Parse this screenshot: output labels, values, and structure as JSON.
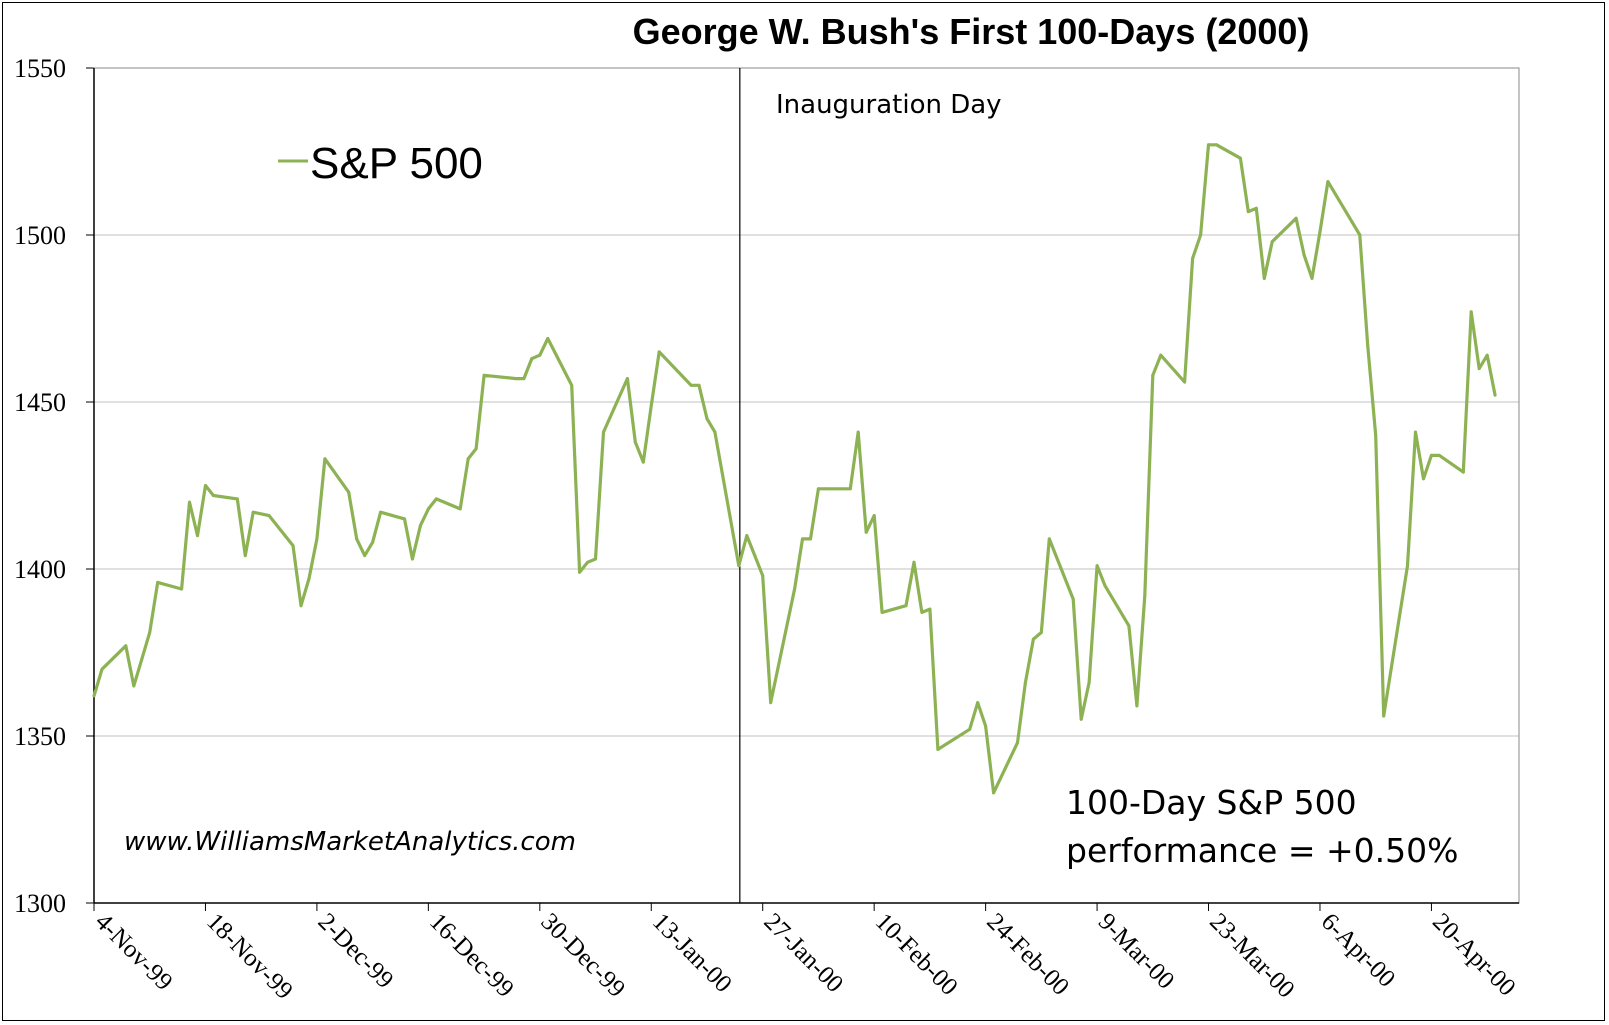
{
  "chart_data": {
    "type": "line",
    "title": "George W. Bush's First 100-Days (2000)",
    "xlabel": "",
    "ylabel": "",
    "ylim": [
      1300,
      1550
    ],
    "yticks": [
      "1300",
      "1350",
      "1400",
      "1450",
      "1500",
      "1550"
    ],
    "xlim": [
      "1999-11-04",
      "2000-05-01"
    ],
    "xticks": [
      {
        "date": "1999-11-04",
        "label": "4-Nov-99"
      },
      {
        "date": "1999-11-18",
        "label": "18-Nov-99"
      },
      {
        "date": "1999-12-02",
        "label": "2-Dec-99"
      },
      {
        "date": "1999-12-16",
        "label": "16-Dec-99"
      },
      {
        "date": "1999-12-30",
        "label": "30-Dec-99"
      },
      {
        "date": "2000-01-13",
        "label": "13-Jan-00"
      },
      {
        "date": "2000-01-27",
        "label": "27-Jan-00"
      },
      {
        "date": "2000-02-10",
        "label": "10-Feb-00"
      },
      {
        "date": "2000-02-24",
        "label": "24-Feb-00"
      },
      {
        "date": "2000-03-09",
        "label": "9-Mar-00"
      },
      {
        "date": "2000-03-23",
        "label": "23-Mar-00"
      },
      {
        "date": "2000-04-06",
        "label": "6-Apr-00"
      },
      {
        "date": "2000-04-20",
        "label": "20-Apr-00"
      }
    ],
    "grid": "horizontal",
    "legend_position": "top-left",
    "series": [
      {
        "name": "S&P 500",
        "color": "#8db254",
        "points": [
          [
            "1999-11-04",
            1362
          ],
          [
            "1999-11-05",
            1370
          ],
          [
            "1999-11-08",
            1377
          ],
          [
            "1999-11-09",
            1365
          ],
          [
            "1999-11-10",
            1373
          ],
          [
            "1999-11-11",
            1381
          ],
          [
            "1999-11-12",
            1396
          ],
          [
            "1999-11-15",
            1394
          ],
          [
            "1999-11-16",
            1420
          ],
          [
            "1999-11-17",
            1410
          ],
          [
            "1999-11-18",
            1425
          ],
          [
            "1999-11-19",
            1422
          ],
          [
            "1999-11-22",
            1421
          ],
          [
            "1999-11-23",
            1404
          ],
          [
            "1999-11-24",
            1417
          ],
          [
            "1999-11-26",
            1416
          ],
          [
            "1999-11-29",
            1407
          ],
          [
            "1999-11-30",
            1389
          ],
          [
            "1999-12-01",
            1397
          ],
          [
            "1999-12-02",
            1409
          ],
          [
            "1999-12-03",
            1433
          ],
          [
            "1999-12-06",
            1423
          ],
          [
            "1999-12-07",
            1409
          ],
          [
            "1999-12-08",
            1404
          ],
          [
            "1999-12-09",
            1408
          ],
          [
            "1999-12-10",
            1417
          ],
          [
            "1999-12-13",
            1415
          ],
          [
            "1999-12-14",
            1403
          ],
          [
            "1999-12-15",
            1413
          ],
          [
            "1999-12-16",
            1418
          ],
          [
            "1999-12-17",
            1421
          ],
          [
            "1999-12-20",
            1418
          ],
          [
            "1999-12-21",
            1433
          ],
          [
            "1999-12-22",
            1436
          ],
          [
            "1999-12-23",
            1458
          ],
          [
            "1999-12-27",
            1457
          ],
          [
            "1999-12-28",
            1457
          ],
          [
            "1999-12-29",
            1463
          ],
          [
            "1999-12-30",
            1464
          ],
          [
            "1999-12-31",
            1469
          ],
          [
            "2000-01-03",
            1455
          ],
          [
            "2000-01-04",
            1399
          ],
          [
            "2000-01-05",
            1402
          ],
          [
            "2000-01-06",
            1403
          ],
          [
            "2000-01-07",
            1441
          ],
          [
            "2000-01-10",
            1457
          ],
          [
            "2000-01-11",
            1438
          ],
          [
            "2000-01-12",
            1432
          ],
          [
            "2000-01-13",
            1449
          ],
          [
            "2000-01-14",
            1465
          ],
          [
            "2000-01-18",
            1455
          ],
          [
            "2000-01-19",
            1455
          ],
          [
            "2000-01-20",
            1445
          ],
          [
            "2000-01-21",
            1441
          ],
          [
            "2000-01-24",
            1401
          ],
          [
            "2000-01-25",
            1410
          ],
          [
            "2000-01-26",
            1404
          ],
          [
            "2000-01-27",
            1398
          ],
          [
            "2000-01-28",
            1360
          ],
          [
            "2000-01-31",
            1394
          ],
          [
            "2000-02-01",
            1409
          ],
          [
            "2000-02-02",
            1409
          ],
          [
            "2000-02-03",
            1424
          ],
          [
            "2000-02-04",
            1424
          ],
          [
            "2000-02-07",
            1424
          ],
          [
            "2000-02-08",
            1441
          ],
          [
            "2000-02-09",
            1411
          ],
          [
            "2000-02-10",
            1416
          ],
          [
            "2000-02-11",
            1387
          ],
          [
            "2000-02-14",
            1389
          ],
          [
            "2000-02-15",
            1402
          ],
          [
            "2000-02-16",
            1387
          ],
          [
            "2000-02-17",
            1388
          ],
          [
            "2000-02-18",
            1346
          ],
          [
            "2000-02-22",
            1352
          ],
          [
            "2000-02-23",
            1360
          ],
          [
            "2000-02-24",
            1353
          ],
          [
            "2000-02-25",
            1333
          ],
          [
            "2000-02-28",
            1348
          ],
          [
            "2000-02-29",
            1366
          ],
          [
            "2000-03-01",
            1379
          ],
          [
            "2000-03-02",
            1381
          ],
          [
            "2000-03-03",
            1409
          ],
          [
            "2000-03-06",
            1391
          ],
          [
            "2000-03-07",
            1355
          ],
          [
            "2000-03-08",
            1366
          ],
          [
            "2000-03-09",
            1401
          ],
          [
            "2000-03-10",
            1395
          ],
          [
            "2000-03-13",
            1383
          ],
          [
            "2000-03-14",
            1359
          ],
          [
            "2000-03-15",
            1392
          ],
          [
            "2000-03-16",
            1458
          ],
          [
            "2000-03-17",
            1464
          ],
          [
            "2000-03-20",
            1456
          ],
          [
            "2000-03-21",
            1493
          ],
          [
            "2000-03-22",
            1500
          ],
          [
            "2000-03-23",
            1527
          ],
          [
            "2000-03-24",
            1527
          ],
          [
            "2000-03-27",
            1523
          ],
          [
            "2000-03-28",
            1507
          ],
          [
            "2000-03-29",
            1508
          ],
          [
            "2000-03-30",
            1487
          ],
          [
            "2000-03-31",
            1498
          ],
          [
            "2000-04-03",
            1505
          ],
          [
            "2000-04-04",
            1494
          ],
          [
            "2000-04-05",
            1487
          ],
          [
            "2000-04-06",
            1501
          ],
          [
            "2000-04-07",
            1516
          ],
          [
            "2000-04-10",
            1504
          ],
          [
            "2000-04-11",
            1500
          ],
          [
            "2000-04-12",
            1467
          ],
          [
            "2000-04-13",
            1440
          ],
          [
            "2000-04-14",
            1356
          ],
          [
            "2000-04-17",
            1401
          ],
          [
            "2000-04-18",
            1441
          ],
          [
            "2000-04-19",
            1427
          ],
          [
            "2000-04-20",
            1434
          ],
          [
            "2000-04-21",
            1434
          ],
          [
            "2000-04-24",
            1429
          ],
          [
            "2000-04-25",
            1477
          ],
          [
            "2000-04-26",
            1460
          ],
          [
            "2000-04-27",
            1464
          ],
          [
            "2000-04-28",
            1452
          ]
        ]
      }
    ],
    "annotations": [
      {
        "text": "Inauguration Day",
        "date": "2000-01-24"
      },
      {
        "text": "www.WilliamsMarketAnalytics.com"
      },
      {
        "lines": [
          "100-Day S&P 500",
          "performance = +0.50%"
        ]
      }
    ]
  }
}
